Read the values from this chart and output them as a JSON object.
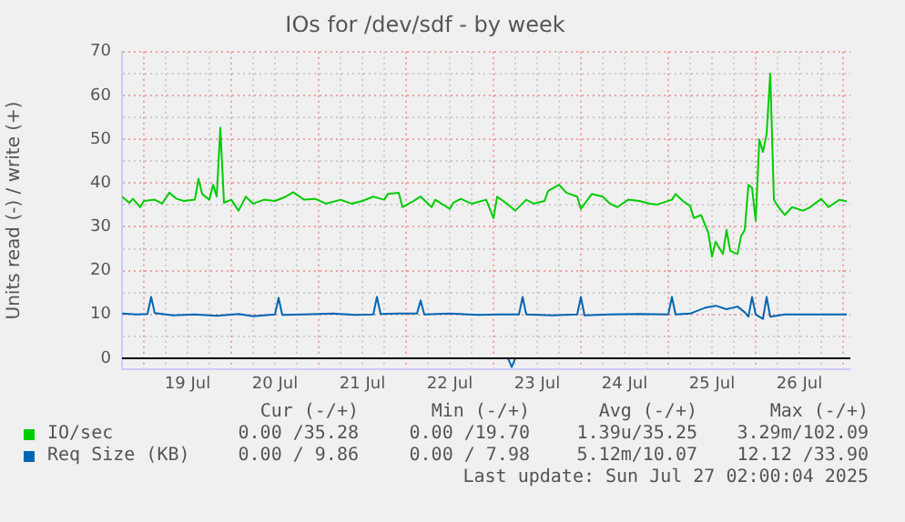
{
  "chart_data": {
    "type": "line",
    "title": "IOs for /dev/sdf - by week",
    "ylabel": "Units read (-) / write (+)",
    "xlim": [
      "2025-07-18T18:00",
      "2025-07-27T02:00"
    ],
    "xticks": [
      {
        "value": "2025-07-18T18:00",
        "label": null
      },
      {
        "value": "2025-07-19T00:00",
        "label": null
      },
      {
        "value": "2025-07-19T06:00",
        "label": null
      },
      {
        "value": "2025-07-19T12:00",
        "label": "19 Jul"
      },
      {
        "value": "2025-07-19T18:00",
        "label": null
      },
      {
        "value": "2025-07-20T00:00",
        "label": null
      },
      {
        "value": "2025-07-20T06:00",
        "label": null
      },
      {
        "value": "2025-07-20T12:00",
        "label": "20 Jul"
      },
      {
        "value": "2025-07-20T18:00",
        "label": null
      },
      {
        "value": "2025-07-21T00:00",
        "label": null
      },
      {
        "value": "2025-07-21T06:00",
        "label": null
      },
      {
        "value": "2025-07-21T12:00",
        "label": "21 Jul"
      },
      {
        "value": "2025-07-21T18:00",
        "label": null
      },
      {
        "value": "2025-07-22T00:00",
        "label": null
      },
      {
        "value": "2025-07-22T06:00",
        "label": null
      },
      {
        "value": "2025-07-22T12:00",
        "label": "22 Jul"
      },
      {
        "value": "2025-07-22T18:00",
        "label": null
      },
      {
        "value": "2025-07-23T00:00",
        "label": null
      },
      {
        "value": "2025-07-23T06:00",
        "label": null
      },
      {
        "value": "2025-07-23T12:00",
        "label": "23 Jul"
      },
      {
        "value": "2025-07-23T18:00",
        "label": null
      },
      {
        "value": "2025-07-24T00:00",
        "label": null
      },
      {
        "value": "2025-07-24T06:00",
        "label": null
      },
      {
        "value": "2025-07-24T12:00",
        "label": "24 Jul"
      },
      {
        "value": "2025-07-24T18:00",
        "label": null
      },
      {
        "value": "2025-07-25T00:00",
        "label": null
      },
      {
        "value": "2025-07-25T06:00",
        "label": null
      },
      {
        "value": "2025-07-25T12:00",
        "label": "25 Jul"
      },
      {
        "value": "2025-07-25T18:00",
        "label": null
      },
      {
        "value": "2025-07-26T00:00",
        "label": null
      },
      {
        "value": "2025-07-26T06:00",
        "label": null
      },
      {
        "value": "2025-07-26T12:00",
        "label": "26 Jul"
      },
      {
        "value": "2025-07-26T18:00",
        "label": null
      },
      {
        "value": "2025-07-27T00:00",
        "label": null
      }
    ],
    "ylim": [
      -2.5,
      70
    ],
    "yticks": [
      0,
      {
        "value": 5,
        "label": null
      },
      10,
      {
        "value": 15,
        "label": null
      },
      20,
      {
        "value": 25,
        "label": null
      },
      30,
      {
        "value": 35,
        "label": null
      },
      40,
      {
        "value": 45,
        "label": null
      },
      50,
      {
        "value": 55,
        "label": null
      },
      60,
      {
        "value": 65,
        "label": null
      },
      70
    ],
    "grid": true,
    "legend": "bottom",
    "ref_lines": [
      {
        "axis": "y",
        "value": 0,
        "color": "#000000"
      }
    ],
    "series": [
      {
        "name": "IO/sec",
        "color": "#00cc00",
        "x": [
          "2025-07-18T18:00",
          "2025-07-18T20:00",
          "2025-07-18T21:00",
          "2025-07-18T23:00",
          "2025-07-19T00:00",
          "2025-07-19T03:00",
          "2025-07-19T05:00",
          "2025-07-19T07:00",
          "2025-07-19T09:00",
          "2025-07-19T11:00",
          "2025-07-19T14:00",
          "2025-07-19T15:00",
          "2025-07-19T16:00",
          "2025-07-19T18:00",
          "2025-07-19T19:00",
          "2025-07-19T20:00",
          "2025-07-19T21:00",
          "2025-07-19T22:00",
          "2025-07-20T00:00",
          "2025-07-20T02:00",
          "2025-07-20T04:00",
          "2025-07-20T06:00",
          "2025-07-20T09:00",
          "2025-07-20T12:00",
          "2025-07-20T15:00",
          "2025-07-20T17:00",
          "2025-07-20T20:00",
          "2025-07-20T23:00",
          "2025-07-21T02:00",
          "2025-07-21T06:00",
          "2025-07-21T09:00",
          "2025-07-21T12:00",
          "2025-07-21T15:00",
          "2025-07-21T18:00",
          "2025-07-21T19:00",
          "2025-07-21T22:00",
          "2025-07-21T23:00",
          "2025-07-22T02:00",
          "2025-07-22T04:00",
          "2025-07-22T07:00",
          "2025-07-22T08:00",
          "2025-07-22T12:00",
          "2025-07-22T13:00",
          "2025-07-22T15:00",
          "2025-07-22T18:00",
          "2025-07-22T22:00",
          "2025-07-23T00:00",
          "2025-07-23T01:00",
          "2025-07-23T04:00",
          "2025-07-23T06:00",
          "2025-07-23T09:00",
          "2025-07-23T11:00",
          "2025-07-23T14:00",
          "2025-07-23T15:00",
          "2025-07-23T18:00",
          "2025-07-23T20:00",
          "2025-07-23T23:00",
          "2025-07-24T00:00",
          "2025-07-24T03:00",
          "2025-07-24T06:00",
          "2025-07-24T08:00",
          "2025-07-24T10:00",
          "2025-07-24T13:00",
          "2025-07-24T16:00",
          "2025-07-24T19:00",
          "2025-07-24T21:00",
          "2025-07-25T01:00",
          "2025-07-25T02:00",
          "2025-07-25T04:00",
          "2025-07-25T06:00",
          "2025-07-25T07:00",
          "2025-07-25T09:00",
          "2025-07-25T11:00",
          "2025-07-25T12:00",
          "2025-07-25T13:00",
          "2025-07-25T15:00",
          "2025-07-25T16:00",
          "2025-07-25T17:00",
          "2025-07-25T19:00",
          "2025-07-25T20:00",
          "2025-07-25T21:00",
          "2025-07-25T22:00",
          "2025-07-25T23:00",
          "2025-07-26T00:00",
          "2025-07-26T01:00",
          "2025-07-26T02:00",
          "2025-07-26T03:00",
          "2025-07-26T04:00",
          "2025-07-26T05:00",
          "2025-07-26T06:00",
          "2025-07-26T08:00",
          "2025-07-26T10:00",
          "2025-07-26T13:00",
          "2025-07-26T15:00",
          "2025-07-26T18:00",
          "2025-07-26T20:00",
          "2025-07-26T23:00",
          "2025-07-27T01:00"
        ],
        "values": [
          36.9,
          35.5,
          36.4,
          34.5,
          35.9,
          36.2,
          35.3,
          37.8,
          36.4,
          35.9,
          36.2,
          41,
          37.5,
          36.2,
          39.6,
          36.9,
          52.6,
          35.5,
          36.2,
          33.7,
          36.9,
          35.3,
          36.2,
          35.9,
          36.9,
          37.9,
          36.2,
          36.4,
          35.3,
          36.2,
          35.3,
          35.9,
          36.9,
          36.2,
          37.5,
          37.8,
          34.5,
          35.9,
          36.9,
          34.5,
          36.2,
          34.1,
          35.5,
          36.4,
          35.3,
          36.2,
          32,
          36.9,
          35.1,
          33.7,
          36.2,
          35.3,
          35.9,
          38.2,
          39.6,
          37.8,
          36.9,
          34.1,
          37.5,
          36.9,
          35.3,
          34.5,
          36.2,
          35.9,
          35.3,
          35.1,
          36.2,
          37.5,
          35.9,
          34.8,
          32,
          32.7,
          28.6,
          23.2,
          26.6,
          23.8,
          29.3,
          24.5,
          23.8,
          27.9,
          29.3,
          39.6,
          38.9,
          31.4,
          49.9,
          47.1,
          51.2,
          65,
          36.2,
          34.8,
          32.7,
          34.5,
          33.7,
          34.5,
          36.4,
          34.5,
          36.2,
          35.8
        ]
      },
      {
        "name": "Req Size (KB)",
        "color": "#0066b3",
        "x": [
          "2025-07-18T18:00",
          "2025-07-18T22:00",
          "2025-07-19T01:00",
          "2025-07-19T02:00",
          "2025-07-19T03:00",
          "2025-07-19T08:00",
          "2025-07-19T14:00",
          "2025-07-19T20:00",
          "2025-07-20T02:00",
          "2025-07-20T06:00",
          "2025-07-20T12:00",
          "2025-07-20T13:00",
          "2025-07-20T14:00",
          "2025-07-20T20:00",
          "2025-07-21T04:00",
          "2025-07-21T10:00",
          "2025-07-21T15:00",
          "2025-07-21T16:00",
          "2025-07-21T17:00",
          "2025-07-21T22:00",
          "2025-07-22T03:00",
          "2025-07-22T04:00",
          "2025-07-22T05:00",
          "2025-07-22T12:00",
          "2025-07-22T20:00",
          "2025-07-23T02:00",
          "2025-07-23T07:00",
          "2025-07-23T08:00",
          "2025-07-23T09:00",
          "2025-07-23T16:00",
          "2025-07-23T23:00",
          "2025-07-24T00:00",
          "2025-07-24T01:00",
          "2025-07-24T08:00",
          "2025-07-24T16:00",
          "2025-07-25T00:00",
          "2025-07-25T01:00",
          "2025-07-25T02:00",
          "2025-07-25T06:00",
          "2025-07-25T10:00",
          "2025-07-25T13:00",
          "2025-07-25T16:00",
          "2025-07-25T19:00",
          "2025-07-25T21:00",
          "2025-07-25T22:00",
          "2025-07-25T23:00",
          "2025-07-26T00:00",
          "2025-07-26T02:00",
          "2025-07-26T03:00",
          "2025-07-26T04:00",
          "2025-07-26T08:00",
          "2025-07-26T14:00",
          "2025-07-26T20:00",
          "2025-07-27T01:00"
        ],
        "values": [
          10.2,
          10,
          10.1,
          14,
          10.3,
          9.8,
          10,
          9.7,
          10.1,
          9.6,
          10,
          13.8,
          9.9,
          10,
          10.2,
          9.9,
          10,
          14,
          10.1,
          10.2,
          10.2,
          13.2,
          10,
          10.2,
          9.9,
          10,
          10,
          14,
          10,
          9.8,
          10,
          14,
          9.8,
          10,
          10.1,
          10,
          14,
          10,
          10.2,
          11.5,
          12,
          11.2,
          11.8,
          10.5,
          9.5,
          14,
          10,
          9,
          14,
          9.5,
          10,
          10,
          10,
          10
        ]
      },
      {
        "color": "#0066b3",
        "x": [
          "2025-07-23T04:00",
          "2025-07-23T05:00",
          "2025-07-23T06:00"
        ],
        "values": [
          0,
          -2,
          0
        ]
      }
    ],
    "annotations": [
      "Cur (-/+)",
      "Min (-/+)",
      "Avg (-/+)",
      "Max (-/+)",
      "0.00 /35.28",
      "0.00 /19.70",
      "1.39u/35.25",
      "3.29m/102.09",
      "0.00 / 9.86",
      "0.00 / 7.98",
      "5.12m/10.07",
      "12.12 /33.90",
      "Last update: Sun Jul 27 02:00:04 2025"
    ]
  }
}
